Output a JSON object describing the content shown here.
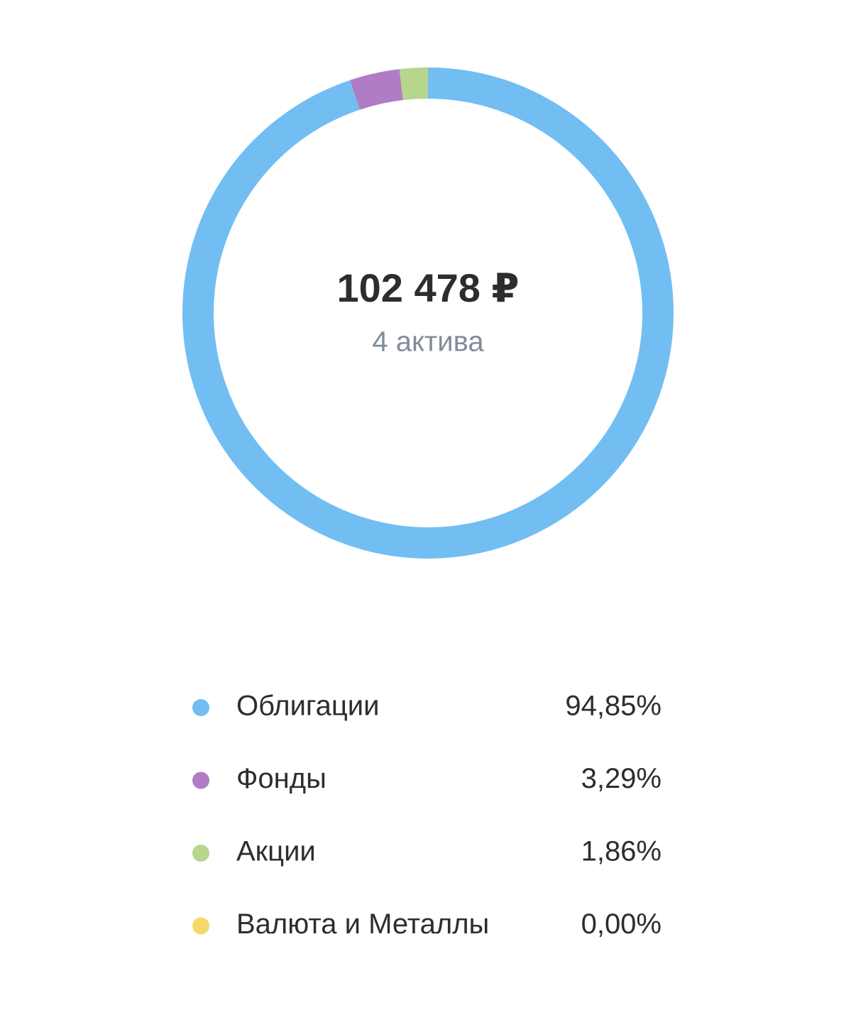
{
  "chart_data": {
    "type": "donut",
    "center_title": "102 478 ₽",
    "center_subtitle": "4 актива",
    "categories": [
      "Облигации",
      "Фонды",
      "Акции",
      "Валюта и Металлы"
    ],
    "values": [
      94.85,
      3.29,
      1.86,
      0.0
    ],
    "value_labels": [
      "94,85%",
      "3,29%",
      "1,86%",
      "0,00%"
    ],
    "colors": [
      "#72bef2",
      "#b07cc6",
      "#b5d68b",
      "#f6d86b"
    ]
  }
}
